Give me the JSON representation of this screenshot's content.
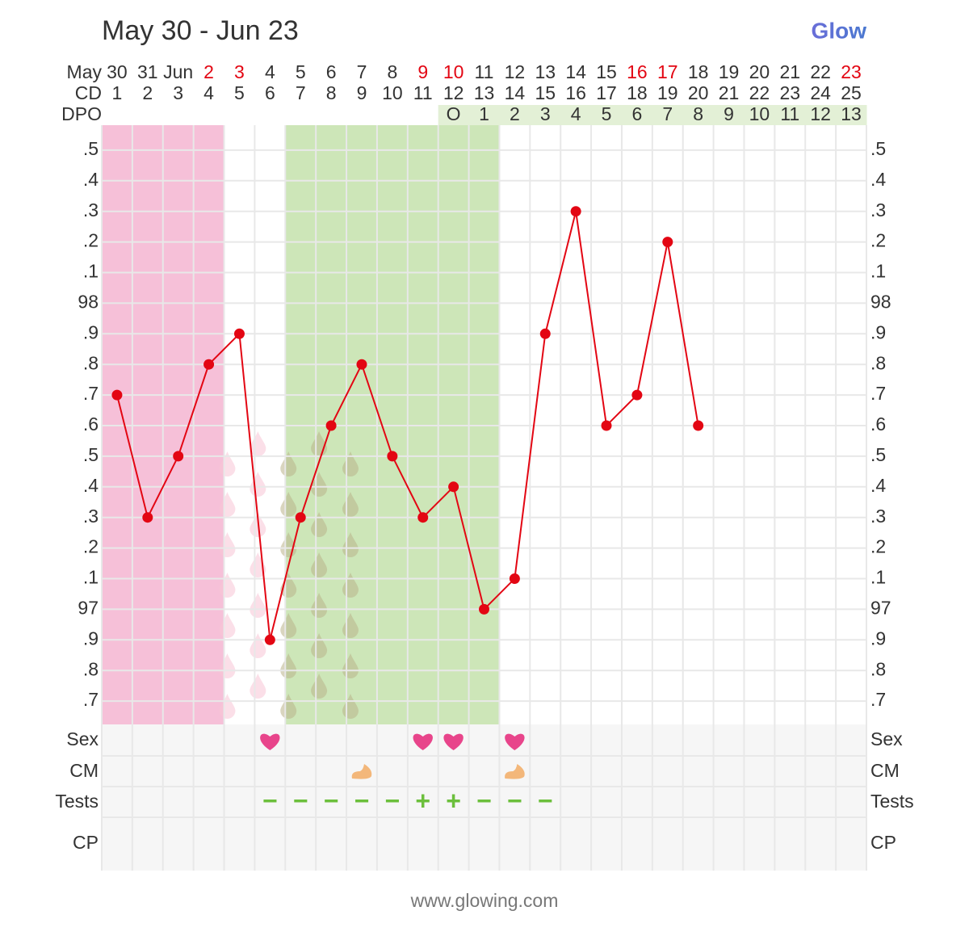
{
  "chart_data": {
    "type": "line",
    "title": "May 30 - Jun 23",
    "brand": "Glow",
    "source": "www.glowing.com",
    "month": "May",
    "categories": [
      "30",
      "31",
      "Jun",
      "2",
      "3",
      "4",
      "5",
      "6",
      "7",
      "8",
      "9",
      "10",
      "11",
      "12",
      "13",
      "14",
      "15",
      "16",
      "17",
      "18",
      "19",
      "20",
      "21",
      "22",
      "23"
    ],
    "weekend": [
      false,
      false,
      false,
      true,
      true,
      false,
      false,
      false,
      false,
      false,
      true,
      true,
      false,
      false,
      false,
      false,
      false,
      true,
      true,
      false,
      false,
      false,
      false,
      false,
      true
    ],
    "cd_label": "CD",
    "cd": [
      1,
      2,
      3,
      4,
      5,
      6,
      7,
      8,
      9,
      10,
      11,
      12,
      13,
      14,
      15,
      16,
      17,
      18,
      19,
      20,
      21,
      22,
      23,
      24,
      25
    ],
    "dpo_label": "DPO",
    "dpo": [
      null,
      null,
      null,
      null,
      null,
      null,
      null,
      null,
      null,
      null,
      null,
      "O",
      1,
      2,
      3,
      4,
      5,
      6,
      7,
      8,
      9,
      10,
      11,
      12,
      13
    ],
    "values": [
      97.7,
      97.3,
      97.5,
      97.8,
      97.9,
      96.9,
      97.3,
      97.6,
      97.8,
      97.5,
      97.3,
      97.4,
      97.0,
      97.1,
      97.9,
      98.3,
      97.6,
      97.7,
      98.2,
      97.6,
      null,
      null,
      null,
      null,
      null
    ],
    "color": "#e30613",
    "ylim": [
      96.6,
      98.6
    ],
    "yticks": [
      {
        "value": 96.7,
        "label": ".7"
      },
      {
        "value": 96.8,
        "label": ".8"
      },
      {
        "value": 96.9,
        "label": ".9"
      },
      97,
      {
        "value": 97.1,
        "label": ".1"
      },
      {
        "value": 97.2,
        "label": ".2"
      },
      {
        "value": 97.3,
        "label": ".3"
      },
      {
        "value": 97.4,
        "label": ".4"
      },
      {
        "value": 97.5,
        "label": ".5"
      },
      {
        "value": 97.6,
        "label": ".6"
      },
      {
        "value": 97.7,
        "label": ".7"
      },
      {
        "value": 97.8,
        "label": ".8"
      },
      {
        "value": 97.9,
        "label": ".9"
      },
      98,
      {
        "value": 98.1,
        "label": ".1"
      },
      {
        "value": 98.2,
        "label": ".2"
      },
      {
        "value": 98.3,
        "label": ".3"
      },
      {
        "value": 98.4,
        "label": ".4"
      },
      {
        "value": 98.5,
        "label": ".5"
      }
    ],
    "grid": true,
    "period": [
      true,
      true,
      true,
      true,
      false,
      false,
      false,
      false,
      false,
      false,
      false,
      false,
      false,
      false,
      false,
      false,
      false,
      false,
      false,
      false,
      false,
      false,
      false,
      false,
      false
    ],
    "fertile": [
      false,
      false,
      false,
      false,
      false,
      false,
      true,
      true,
      true,
      true,
      true,
      true,
      true,
      false,
      false,
      false,
      false,
      false,
      false,
      false,
      false,
      false,
      false,
      false,
      false
    ],
    "row_labels": {
      "sex": "Sex",
      "cm": "CM",
      "tests": "Tests",
      "cp": "CP"
    },
    "sex": [
      false,
      false,
      false,
      false,
      false,
      true,
      false,
      false,
      false,
      false,
      true,
      true,
      false,
      true,
      false,
      false,
      false,
      false,
      false,
      false,
      false,
      false,
      false,
      false,
      false
    ],
    "cm": [
      false,
      false,
      false,
      false,
      false,
      false,
      false,
      false,
      true,
      false,
      false,
      false,
      false,
      true,
      false,
      false,
      false,
      false,
      false,
      false,
      false,
      false,
      false,
      false,
      false
    ],
    "tests": [
      null,
      null,
      null,
      null,
      null,
      "−",
      "−",
      "−",
      "−",
      "−",
      "+",
      "+",
      "−",
      "−",
      "−",
      null,
      null,
      null,
      null,
      null,
      null,
      null,
      null,
      null,
      null
    ]
  }
}
